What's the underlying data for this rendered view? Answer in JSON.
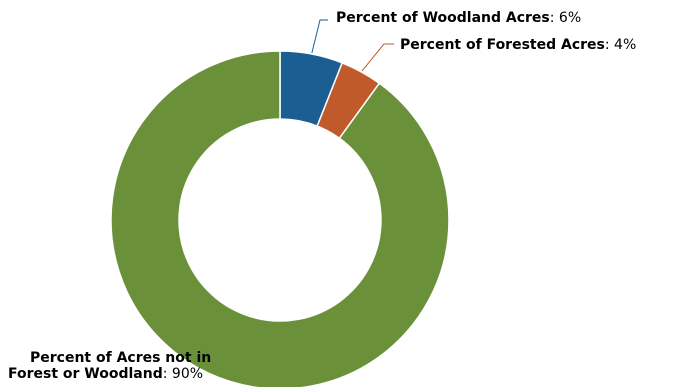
{
  "chart_data": {
    "type": "pie",
    "donut": true,
    "legend": "none",
    "slices": [
      {
        "name": "Percent of Woodland Acres",
        "value": 6,
        "value_text": "6%",
        "color": "#1a5e94"
      },
      {
        "name": "Percent of Forested Acres",
        "value": 4,
        "value_text": "4%",
        "color": "#c05a2b"
      },
      {
        "name": "Percent of Acres not in Forest or Woodland",
        "name_lines": [
          "Percent of Acres not in",
          "Forest or Woodland"
        ],
        "value": 90,
        "value_text": "90%",
        "color": "#6a903a"
      }
    ]
  }
}
